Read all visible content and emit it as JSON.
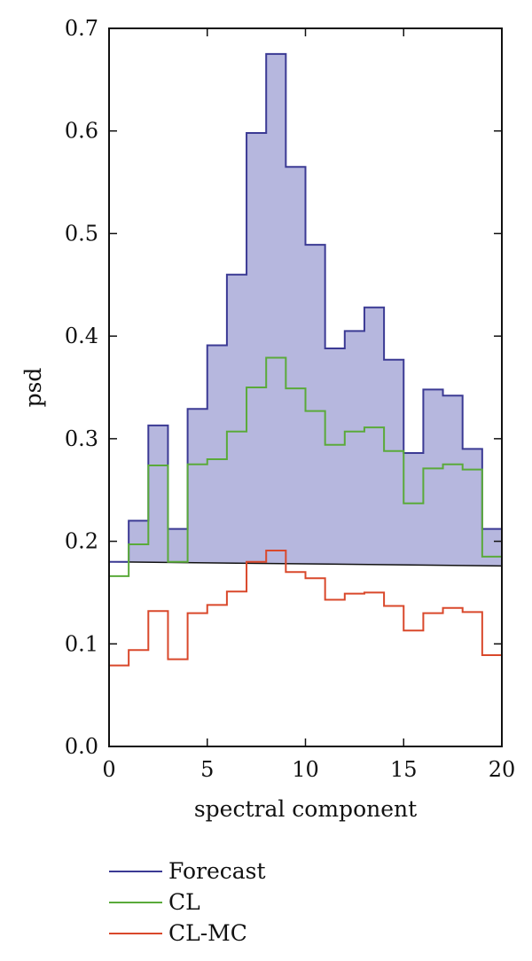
{
  "chart_data": {
    "type": "line",
    "step": true,
    "xlabel": "spectral component",
    "ylabel": "psd",
    "xlim": [
      0,
      20
    ],
    "ylim": [
      0.0,
      0.7
    ],
    "xticks": [
      0,
      5,
      10,
      15,
      20
    ],
    "xtick_labels": [
      "0",
      "5",
      "10",
      "15",
      "20"
    ],
    "yticks": [
      0.0,
      0.1,
      0.2,
      0.3,
      0.4,
      0.5,
      0.6,
      0.7
    ],
    "ytick_labels": [
      "0.0",
      "0.1",
      "0.2",
      "0.3",
      "0.4",
      "0.5",
      "0.6",
      "0.7"
    ],
    "grid": false,
    "legend_position": "bottom-left",
    "x": [
      0,
      1,
      2,
      3,
      4,
      5,
      6,
      7,
      8,
      9,
      10,
      11,
      12,
      13,
      14,
      15,
      16,
      17,
      18,
      19
    ],
    "series": [
      {
        "name": "Forecast",
        "color": "#3b3a94",
        "fill_color": "#b6b7de",
        "filled": true,
        "values": [
          0.18,
          0.22,
          0.313,
          0.212,
          0.329,
          0.391,
          0.46,
          0.598,
          0.675,
          0.565,
          0.489,
          0.388,
          0.405,
          0.428,
          0.377,
          0.286,
          0.348,
          0.342,
          0.29,
          0.212
        ]
      },
      {
        "name": "CL",
        "color": "#5aaa3a",
        "values": [
          0.166,
          0.197,
          0.274,
          0.18,
          0.275,
          0.28,
          0.307,
          0.35,
          0.379,
          0.349,
          0.327,
          0.294,
          0.307,
          0.311,
          0.288,
          0.237,
          0.271,
          0.275,
          0.27,
          0.185
        ]
      },
      {
        "name": "CL-MC",
        "color": "#d9482b",
        "values": [
          0.079,
          0.094,
          0.132,
          0.085,
          0.13,
          0.138,
          0.151,
          0.18,
          0.191,
          0.17,
          0.164,
          0.143,
          0.149,
          0.15,
          0.137,
          0.113,
          0.13,
          0.135,
          0.131,
          0.089
        ]
      }
    ],
    "baseline": {
      "color": "#111111",
      "y_start": 0.18,
      "y_end": 0.176
    }
  }
}
